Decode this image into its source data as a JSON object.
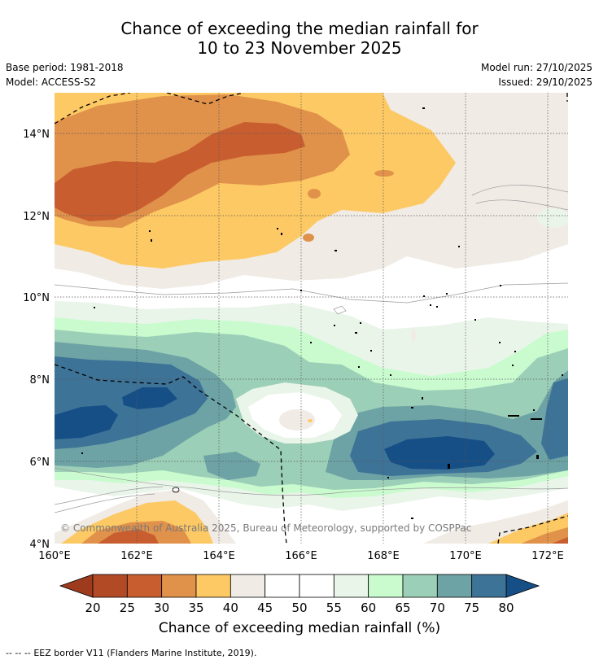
{
  "title": {
    "line1": "Chance of exceeding the median rainfall for",
    "line2": "10 to 23 November 2025"
  },
  "meta": {
    "base_period": "Base period: 1981-2018",
    "model": "Model: ACCESS-S2",
    "model_run": "Model run: 27/10/2025",
    "issued": "Issued: 29/10/2025"
  },
  "map": {
    "lat_labels": [
      "14°N",
      "12°N",
      "10°N",
      "8°N",
      "6°N",
      "4°N"
    ],
    "lon_labels": [
      "160°E",
      "162°E",
      "164°E",
      "166°E",
      "168°E",
      "170°E",
      "172°E"
    ],
    "copyright": "© Commonwealth of Australia 2025, Bureau of Meteorology, supported by COSPPac"
  },
  "colorbar": {
    "title": "Chance of exceeding median rainfall (%)",
    "ticks": [
      "20",
      "25",
      "30",
      "35",
      "40",
      "45",
      "50",
      "55",
      "60",
      "65",
      "70",
      "75",
      "80"
    ],
    "colors": {
      "under": "#9e3b1e",
      "c20_25": "#b34a26",
      "c25_30": "#c85e30",
      "c30_35": "#e0914a",
      "c35_40": "#fdc964",
      "c40_45": "#f0ebe5",
      "c45_50": "#ffffff",
      "c50_55": "#ffffff",
      "c55_60": "#eaf5ea",
      "c60_65": "#c9fbcf",
      "c65_70": "#9ccfb7",
      "c70_75": "#6da3a5",
      "c75_80": "#3e7398",
      "over": "#164f86"
    }
  },
  "footer": {
    "legend_symbol": "--  --  --",
    "text": "EEZ border V11 (Flanders Marine Institute, 2019)."
  }
}
